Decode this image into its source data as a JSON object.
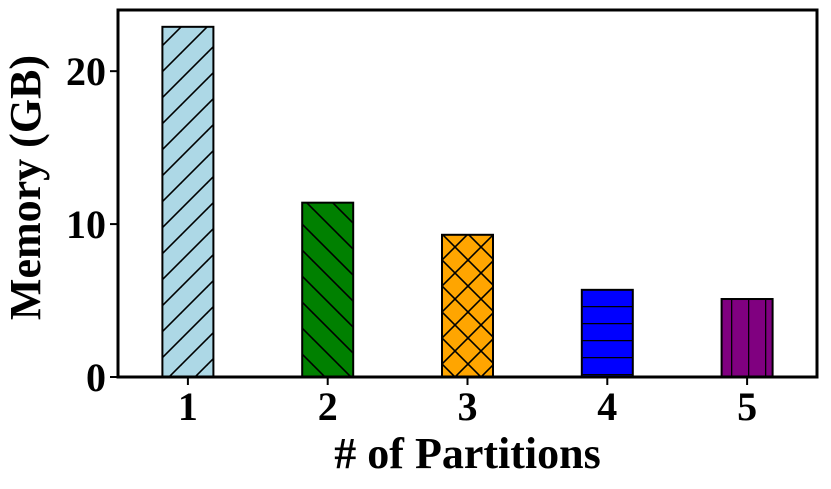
{
  "chart_data": {
    "type": "bar",
    "title": "",
    "xlabel": "# of Partitions",
    "ylabel": "Memory (GB)",
    "categories": [
      "1",
      "2",
      "3",
      "4",
      "5"
    ],
    "values": [
      22.9,
      11.4,
      9.3,
      5.7,
      5.1
    ],
    "ylim": [
      0,
      24
    ],
    "yticks": [
      0,
      10,
      20
    ],
    "grid": false,
    "bars": [
      {
        "category": "1",
        "color": "#add8e6",
        "hatch": "forward-diagonal"
      },
      {
        "category": "2",
        "color": "#008000",
        "hatch": "back-diagonal"
      },
      {
        "category": "3",
        "color": "#ffa500",
        "hatch": "cross-diagonal"
      },
      {
        "category": "4",
        "color": "#0000ff",
        "hatch": "horizontal"
      },
      {
        "category": "5",
        "color": "#800080",
        "hatch": "vertical"
      }
    ]
  }
}
